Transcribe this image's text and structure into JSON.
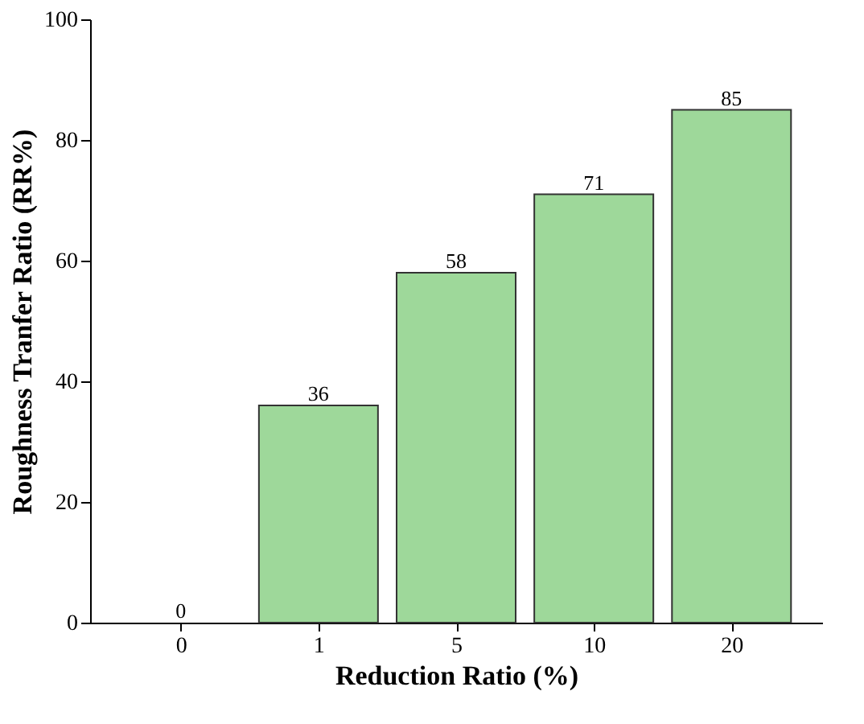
{
  "chart_data": {
    "type": "bar",
    "xlabel": "Reduction Ratio (%)",
    "ylabel": "Roughness Tranfer Ratio (RR%)",
    "categories": [
      "0",
      "1",
      "5",
      "10",
      "20"
    ],
    "values": [
      0,
      36,
      58,
      71,
      85
    ],
    "color": "#9ed89a",
    "ylim": [
      0,
      100
    ],
    "yticks": [
      0,
      20,
      40,
      60,
      80,
      100
    ],
    "data_labels": true,
    "grid": false
  }
}
